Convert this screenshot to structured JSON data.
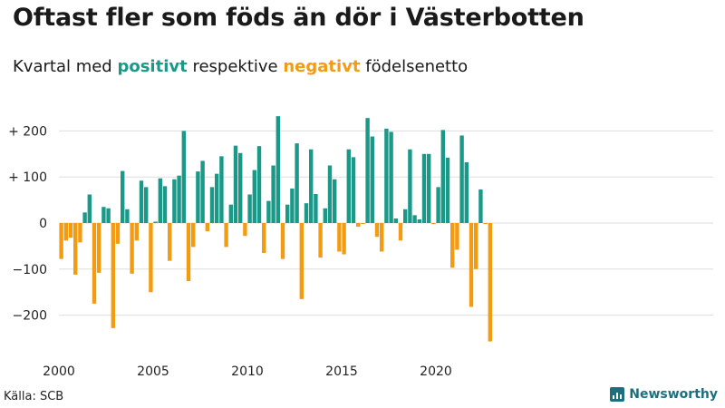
{
  "title": "Oftast fler som föds än dör i Västerbotten",
  "subtitle": {
    "prefix": "Kvartal med",
    "positive_word": "positivt",
    "middle": "respektive",
    "negative_word": "negativt",
    "suffix": "födelsenetto"
  },
  "source": "Källa: SCB",
  "brand": "Newsworthy",
  "colors": {
    "positive": "#1a9988",
    "negative": "#f39c12",
    "grid": "#dddddd",
    "brand": "#1e6f7e"
  },
  "chart_data": {
    "type": "bar",
    "title": "Oftast fler som föds än dör i Västerbotten",
    "xlabel": "",
    "ylabel": "",
    "ylim": [
      -270,
      250
    ],
    "y_ticks": [
      {
        "value": 200,
        "label": "+ 200"
      },
      {
        "value": 100,
        "label": "+ 100"
      },
      {
        "value": 0,
        "label": "0"
      },
      {
        "value": -100,
        "label": "−100"
      },
      {
        "value": -200,
        "label": "−200"
      }
    ],
    "x_ticks": [
      "2000",
      "2005",
      "2010",
      "2015",
      "2020"
    ],
    "start_year": 2000,
    "quarters_per_year": 4,
    "values": [
      -78,
      -38,
      -32,
      -112,
      -42,
      23,
      62,
      -175,
      -108,
      35,
      32,
      -228,
      -45,
      113,
      30,
      -110,
      -38,
      92,
      78,
      -150,
      3,
      97,
      80,
      -82,
      95,
      103,
      200,
      -126,
      -52,
      112,
      135,
      -18,
      78,
      107,
      145,
      -52,
      40,
      168,
      152,
      -28,
      62,
      115,
      167,
      -65,
      48,
      125,
      232,
      -78,
      40,
      75,
      173,
      -165,
      43,
      160,
      63,
      -75,
      32,
      125,
      95,
      -62,
      -68,
      160,
      143,
      -8,
      -2,
      228,
      188,
      -30,
      -62,
      205,
      198,
      10,
      -38,
      30,
      160,
      17,
      8,
      150,
      150,
      -2,
      78,
      202,
      142,
      -97,
      -58,
      190,
      132,
      -182,
      -100,
      73,
      -2,
      -257
    ]
  }
}
